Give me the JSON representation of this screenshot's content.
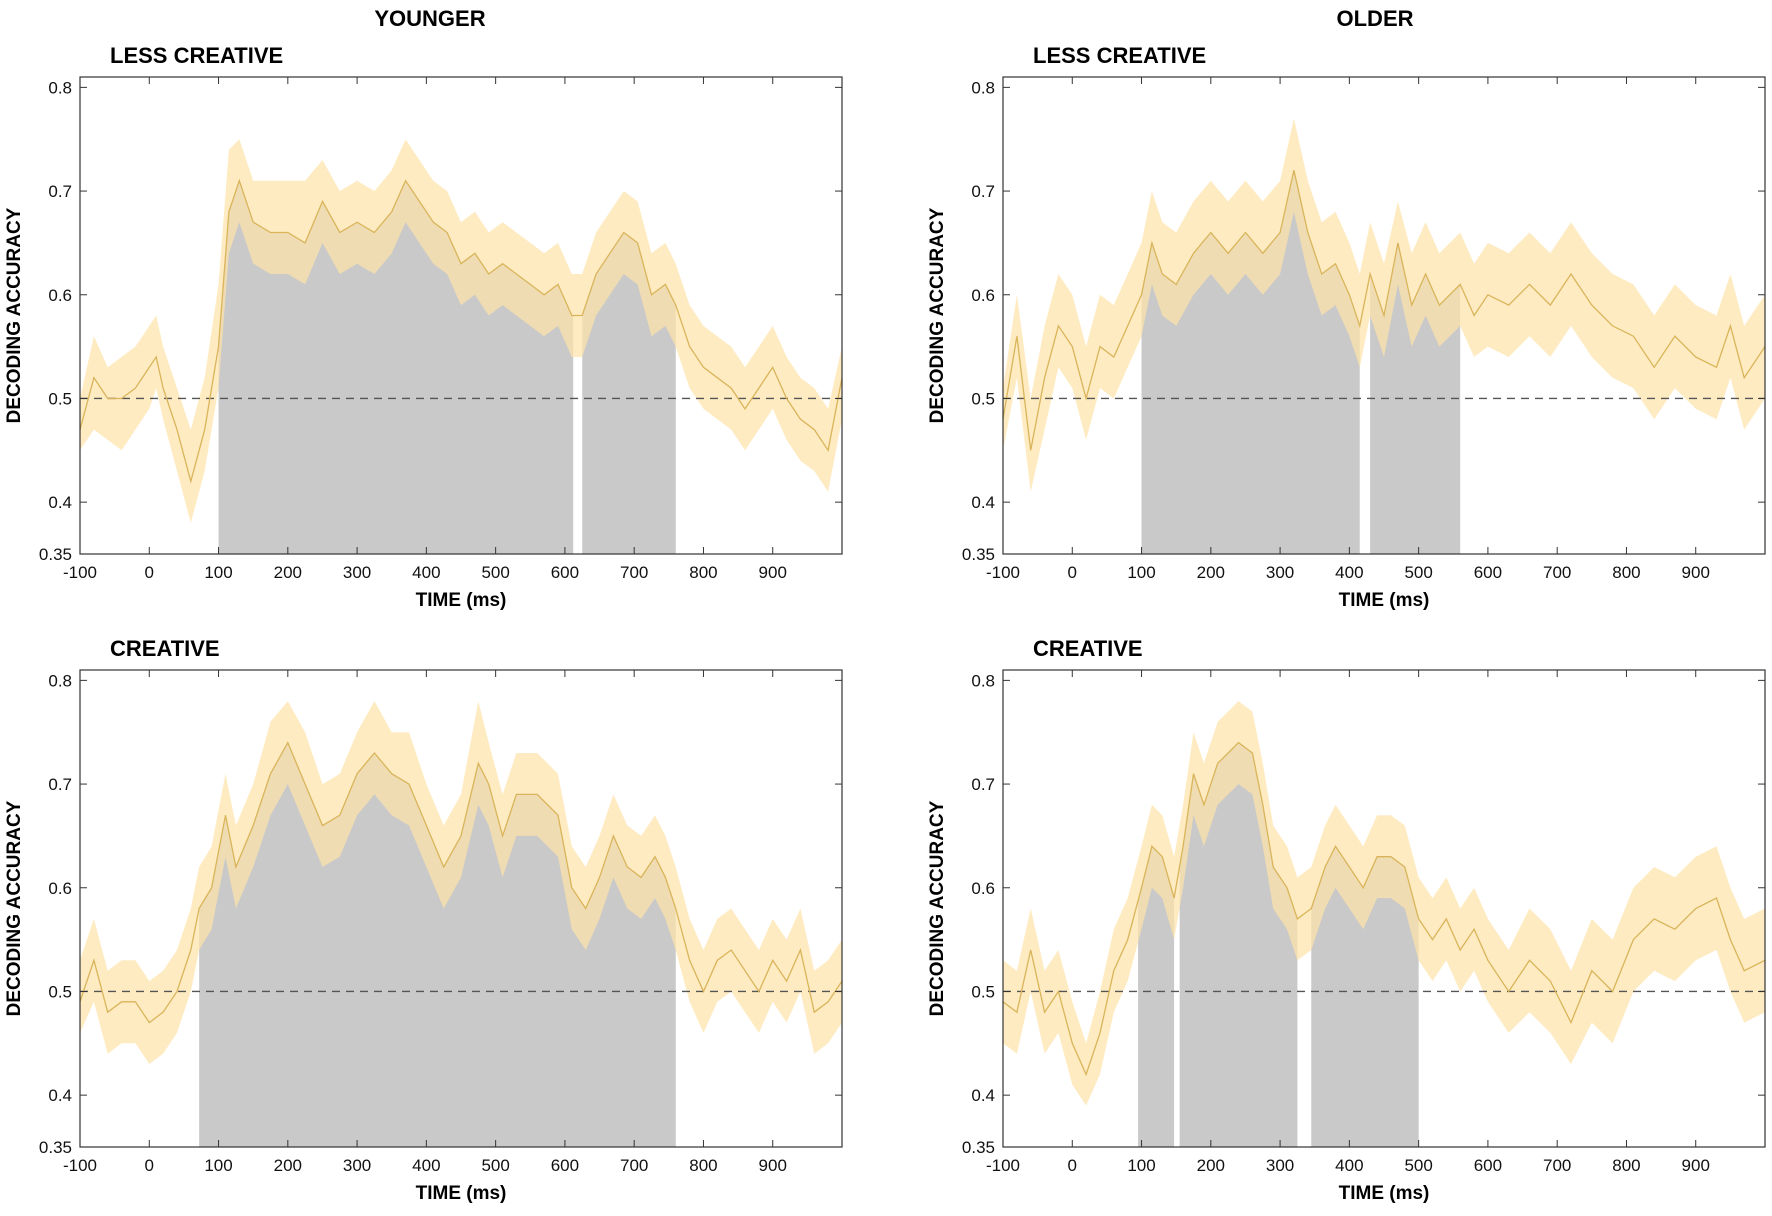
{
  "figure": {
    "column_titles": [
      "YOUNGER",
      "OLDER"
    ]
  },
  "chart_data": [
    {
      "type": "line",
      "group": "YOUNGER",
      "title": "LESS CREATIVE",
      "xlabel": "TIME (ms)",
      "ylabel": "DECODING ACCURACY",
      "xlim": [
        -100,
        1000
      ],
      "ylim": [
        0.35,
        0.81
      ],
      "xticks": [
        -100,
        0,
        100,
        200,
        300,
        400,
        500,
        600,
        700,
        800,
        900
      ],
      "yticks": [
        0.35,
        0.4,
        0.5,
        0.6,
        0.7,
        0.8
      ],
      "ytick_labels": [
        "0.35",
        "0.4",
        "0.5",
        "0.6",
        "0.7",
        "0.8"
      ],
      "chance_level": 0.5,
      "mean_color": "#d9b45a",
      "ci_color": "#fde3a9",
      "significance_color": "#c9c9c9",
      "significant_windows": [
        [
          100,
          612
        ],
        [
          625,
          760
        ]
      ],
      "series": [
        {
          "name": "decoding accuracy",
          "x": [
            -100,
            -80,
            -60,
            -40,
            -20,
            0,
            10,
            20,
            40,
            60,
            80,
            100,
            115,
            130,
            150,
            175,
            200,
            225,
            250,
            275,
            300,
            325,
            350,
            370,
            390,
            410,
            430,
            450,
            470,
            490,
            510,
            530,
            550,
            570,
            590,
            610,
            625,
            645,
            665,
            685,
            705,
            725,
            745,
            760,
            780,
            800,
            820,
            840,
            860,
            880,
            900,
            920,
            940,
            960,
            980,
            1000
          ],
          "mean": [
            0.47,
            0.52,
            0.5,
            0.5,
            0.51,
            0.53,
            0.54,
            0.51,
            0.47,
            0.42,
            0.47,
            0.55,
            0.68,
            0.71,
            0.67,
            0.66,
            0.66,
            0.65,
            0.69,
            0.66,
            0.67,
            0.66,
            0.68,
            0.71,
            0.69,
            0.67,
            0.66,
            0.63,
            0.64,
            0.62,
            0.63,
            0.62,
            0.61,
            0.6,
            0.61,
            0.58,
            0.58,
            0.62,
            0.64,
            0.66,
            0.65,
            0.6,
            0.61,
            0.59,
            0.55,
            0.53,
            0.52,
            0.51,
            0.49,
            0.51,
            0.53,
            0.5,
            0.48,
            0.47,
            0.45,
            0.52
          ],
          "lower": [
            0.45,
            0.47,
            0.46,
            0.45,
            0.47,
            0.49,
            0.51,
            0.48,
            0.43,
            0.38,
            0.43,
            0.51,
            0.64,
            0.67,
            0.63,
            0.62,
            0.62,
            0.61,
            0.65,
            0.62,
            0.63,
            0.62,
            0.64,
            0.67,
            0.65,
            0.63,
            0.62,
            0.59,
            0.6,
            0.58,
            0.59,
            0.58,
            0.57,
            0.56,
            0.57,
            0.54,
            0.54,
            0.58,
            0.6,
            0.62,
            0.61,
            0.56,
            0.57,
            0.55,
            0.51,
            0.49,
            0.48,
            0.47,
            0.45,
            0.47,
            0.49,
            0.46,
            0.44,
            0.43,
            0.41,
            0.48
          ],
          "upper": [
            0.5,
            0.56,
            0.53,
            0.54,
            0.55,
            0.57,
            0.58,
            0.55,
            0.51,
            0.47,
            0.52,
            0.61,
            0.74,
            0.75,
            0.71,
            0.71,
            0.71,
            0.71,
            0.73,
            0.7,
            0.71,
            0.7,
            0.72,
            0.75,
            0.73,
            0.71,
            0.7,
            0.67,
            0.68,
            0.66,
            0.67,
            0.66,
            0.65,
            0.64,
            0.65,
            0.62,
            0.62,
            0.66,
            0.68,
            0.7,
            0.69,
            0.64,
            0.65,
            0.63,
            0.59,
            0.57,
            0.56,
            0.55,
            0.53,
            0.55,
            0.57,
            0.54,
            0.52,
            0.51,
            0.49,
            0.55
          ]
        }
      ]
    },
    {
      "type": "line",
      "group": "OLDER",
      "title": "LESS CREATIVE",
      "xlabel": "TIME (ms)",
      "ylabel": "DECODING ACCURACY",
      "xlim": [
        -100,
        1000
      ],
      "ylim": [
        0.35,
        0.81
      ],
      "xticks": [
        -100,
        0,
        100,
        200,
        300,
        400,
        500,
        600,
        700,
        800,
        900
      ],
      "yticks": [
        0.35,
        0.4,
        0.5,
        0.6,
        0.7,
        0.8
      ],
      "ytick_labels": [
        "0.35",
        "0.4",
        "0.5",
        "0.6",
        "0.7",
        "0.8"
      ],
      "chance_level": 0.5,
      "mean_color": "#d9b45a",
      "ci_color": "#fde3a9",
      "significance_color": "#c9c9c9",
      "significant_windows": [
        [
          100,
          415
        ],
        [
          430,
          560
        ]
      ],
      "series": [
        {
          "name": "decoding accuracy",
          "x": [
            -100,
            -80,
            -60,
            -40,
            -20,
            0,
            20,
            40,
            60,
            80,
            100,
            115,
            130,
            150,
            175,
            200,
            225,
            250,
            275,
            300,
            320,
            340,
            360,
            380,
            400,
            415,
            430,
            450,
            470,
            490,
            510,
            530,
            560,
            580,
            600,
            630,
            660,
            690,
            720,
            750,
            780,
            810,
            840,
            870,
            900,
            930,
            950,
            970,
            1000
          ],
          "mean": [
            0.48,
            0.56,
            0.45,
            0.52,
            0.57,
            0.55,
            0.5,
            0.55,
            0.54,
            0.57,
            0.6,
            0.65,
            0.62,
            0.61,
            0.64,
            0.66,
            0.64,
            0.66,
            0.64,
            0.66,
            0.72,
            0.66,
            0.62,
            0.63,
            0.6,
            0.57,
            0.62,
            0.58,
            0.65,
            0.59,
            0.62,
            0.59,
            0.61,
            0.58,
            0.6,
            0.59,
            0.61,
            0.59,
            0.62,
            0.59,
            0.57,
            0.56,
            0.53,
            0.56,
            0.54,
            0.53,
            0.57,
            0.52,
            0.55
          ],
          "lower": [
            0.45,
            0.52,
            0.41,
            0.47,
            0.53,
            0.51,
            0.46,
            0.51,
            0.5,
            0.53,
            0.56,
            0.61,
            0.58,
            0.57,
            0.6,
            0.62,
            0.6,
            0.62,
            0.6,
            0.62,
            0.68,
            0.62,
            0.58,
            0.59,
            0.56,
            0.53,
            0.58,
            0.54,
            0.61,
            0.55,
            0.58,
            0.55,
            0.57,
            0.54,
            0.55,
            0.54,
            0.56,
            0.54,
            0.57,
            0.54,
            0.52,
            0.51,
            0.48,
            0.51,
            0.49,
            0.48,
            0.52,
            0.47,
            0.5
          ],
          "upper": [
            0.51,
            0.6,
            0.5,
            0.57,
            0.62,
            0.6,
            0.55,
            0.6,
            0.59,
            0.62,
            0.65,
            0.7,
            0.67,
            0.66,
            0.69,
            0.71,
            0.69,
            0.71,
            0.69,
            0.71,
            0.77,
            0.71,
            0.67,
            0.68,
            0.65,
            0.62,
            0.67,
            0.63,
            0.69,
            0.64,
            0.67,
            0.64,
            0.66,
            0.63,
            0.65,
            0.64,
            0.66,
            0.64,
            0.67,
            0.64,
            0.62,
            0.61,
            0.58,
            0.61,
            0.59,
            0.58,
            0.62,
            0.57,
            0.6
          ]
        }
      ]
    },
    {
      "type": "line",
      "group": "YOUNGER",
      "title": "CREATIVE",
      "xlabel": "TIME (ms)",
      "ylabel": "DECODING ACCURACY",
      "xlim": [
        -100,
        1000
      ],
      "ylim": [
        0.35,
        0.81
      ],
      "xticks": [
        -100,
        0,
        100,
        200,
        300,
        400,
        500,
        600,
        700,
        800,
        900
      ],
      "yticks": [
        0.35,
        0.4,
        0.5,
        0.6,
        0.7,
        0.8
      ],
      "ytick_labels": [
        "0.35",
        "0.4",
        "0.5",
        "0.6",
        "0.7",
        "0.8"
      ],
      "chance_level": 0.5,
      "mean_color": "#d9b45a",
      "ci_color": "#fde3a9",
      "significance_color": "#c9c9c9",
      "significant_windows": [
        [
          72,
          760
        ]
      ],
      "series": [
        {
          "name": "decoding accuracy",
          "x": [
            -100,
            -80,
            -60,
            -40,
            -20,
            0,
            20,
            40,
            60,
            72,
            90,
            110,
            125,
            150,
            175,
            200,
            225,
            250,
            275,
            300,
            325,
            350,
            375,
            400,
            425,
            450,
            475,
            490,
            510,
            530,
            560,
            590,
            610,
            630,
            650,
            670,
            690,
            710,
            730,
            745,
            760,
            780,
            800,
            820,
            840,
            860,
            880,
            900,
            920,
            940,
            960,
            980,
            1000
          ],
          "mean": [
            0.49,
            0.53,
            0.48,
            0.49,
            0.49,
            0.47,
            0.48,
            0.5,
            0.54,
            0.58,
            0.6,
            0.67,
            0.62,
            0.66,
            0.71,
            0.74,
            0.7,
            0.66,
            0.67,
            0.71,
            0.73,
            0.71,
            0.7,
            0.66,
            0.62,
            0.65,
            0.72,
            0.7,
            0.65,
            0.69,
            0.69,
            0.67,
            0.6,
            0.58,
            0.61,
            0.65,
            0.62,
            0.61,
            0.63,
            0.61,
            0.58,
            0.53,
            0.5,
            0.53,
            0.54,
            0.52,
            0.5,
            0.53,
            0.51,
            0.54,
            0.48,
            0.49,
            0.51
          ],
          "lower": [
            0.46,
            0.49,
            0.44,
            0.45,
            0.45,
            0.43,
            0.44,
            0.46,
            0.5,
            0.54,
            0.56,
            0.63,
            0.58,
            0.62,
            0.67,
            0.7,
            0.66,
            0.62,
            0.63,
            0.67,
            0.69,
            0.67,
            0.66,
            0.62,
            0.58,
            0.61,
            0.68,
            0.66,
            0.61,
            0.65,
            0.65,
            0.63,
            0.56,
            0.54,
            0.57,
            0.61,
            0.58,
            0.57,
            0.59,
            0.57,
            0.54,
            0.49,
            0.46,
            0.49,
            0.5,
            0.48,
            0.46,
            0.49,
            0.47,
            0.5,
            0.44,
            0.45,
            0.47
          ],
          "upper": [
            0.53,
            0.57,
            0.52,
            0.53,
            0.53,
            0.51,
            0.52,
            0.54,
            0.58,
            0.62,
            0.64,
            0.71,
            0.66,
            0.7,
            0.76,
            0.78,
            0.75,
            0.7,
            0.71,
            0.75,
            0.78,
            0.75,
            0.75,
            0.7,
            0.66,
            0.69,
            0.78,
            0.74,
            0.69,
            0.73,
            0.73,
            0.71,
            0.64,
            0.62,
            0.65,
            0.69,
            0.66,
            0.65,
            0.67,
            0.65,
            0.62,
            0.57,
            0.54,
            0.57,
            0.58,
            0.56,
            0.54,
            0.57,
            0.55,
            0.58,
            0.52,
            0.53,
            0.55
          ]
        }
      ]
    },
    {
      "type": "line",
      "group": "OLDER",
      "title": "CREATIVE",
      "xlabel": "TIME (ms)",
      "ylabel": "DECODING ACCURACY",
      "xlim": [
        -100,
        1000
      ],
      "ylim": [
        0.35,
        0.81
      ],
      "xticks": [
        -100,
        0,
        100,
        200,
        300,
        400,
        500,
        600,
        700,
        800,
        900
      ],
      "yticks": [
        0.35,
        0.4,
        0.5,
        0.6,
        0.7,
        0.8
      ],
      "ytick_labels": [
        "0.35",
        "0.4",
        "0.5",
        "0.6",
        "0.7",
        "0.8"
      ],
      "chance_level": 0.5,
      "mean_color": "#d9b45a",
      "ci_color": "#fde3a9",
      "significance_color": "#c9c9c9",
      "significant_windows": [
        [
          95,
          147
        ],
        [
          155,
          325
        ],
        [
          345,
          500
        ]
      ],
      "series": [
        {
          "name": "decoding accuracy",
          "x": [
            -100,
            -80,
            -60,
            -40,
            -20,
            0,
            20,
            40,
            60,
            80,
            100,
            115,
            130,
            147,
            160,
            175,
            190,
            210,
            225,
            240,
            260,
            275,
            290,
            310,
            325,
            345,
            365,
            380,
            400,
            420,
            440,
            460,
            480,
            500,
            520,
            540,
            560,
            580,
            600,
            630,
            660,
            690,
            720,
            750,
            780,
            810,
            840,
            870,
            900,
            930,
            950,
            970,
            1000
          ],
          "mean": [
            0.49,
            0.48,
            0.54,
            0.48,
            0.5,
            0.45,
            0.42,
            0.46,
            0.52,
            0.55,
            0.6,
            0.64,
            0.63,
            0.59,
            0.64,
            0.71,
            0.68,
            0.72,
            0.73,
            0.74,
            0.73,
            0.68,
            0.62,
            0.6,
            0.57,
            0.58,
            0.62,
            0.64,
            0.62,
            0.6,
            0.63,
            0.63,
            0.62,
            0.57,
            0.55,
            0.57,
            0.54,
            0.56,
            0.53,
            0.5,
            0.53,
            0.51,
            0.47,
            0.52,
            0.5,
            0.55,
            0.57,
            0.56,
            0.58,
            0.59,
            0.55,
            0.52,
            0.53
          ],
          "lower": [
            0.45,
            0.44,
            0.5,
            0.44,
            0.46,
            0.41,
            0.39,
            0.42,
            0.48,
            0.51,
            0.56,
            0.6,
            0.59,
            0.55,
            0.6,
            0.67,
            0.64,
            0.68,
            0.69,
            0.7,
            0.69,
            0.64,
            0.58,
            0.56,
            0.53,
            0.54,
            0.58,
            0.6,
            0.58,
            0.56,
            0.59,
            0.59,
            0.58,
            0.53,
            0.51,
            0.53,
            0.5,
            0.52,
            0.49,
            0.46,
            0.48,
            0.46,
            0.43,
            0.47,
            0.45,
            0.5,
            0.52,
            0.51,
            0.53,
            0.54,
            0.5,
            0.47,
            0.48
          ],
          "upper": [
            0.53,
            0.52,
            0.58,
            0.52,
            0.54,
            0.49,
            0.45,
            0.5,
            0.56,
            0.59,
            0.64,
            0.68,
            0.67,
            0.63,
            0.68,
            0.75,
            0.72,
            0.76,
            0.77,
            0.78,
            0.77,
            0.72,
            0.66,
            0.64,
            0.61,
            0.62,
            0.66,
            0.68,
            0.66,
            0.64,
            0.67,
            0.67,
            0.66,
            0.61,
            0.59,
            0.61,
            0.58,
            0.6,
            0.57,
            0.54,
            0.58,
            0.56,
            0.52,
            0.57,
            0.55,
            0.6,
            0.62,
            0.61,
            0.63,
            0.64,
            0.6,
            0.57,
            0.58
          ]
        }
      ]
    }
  ]
}
